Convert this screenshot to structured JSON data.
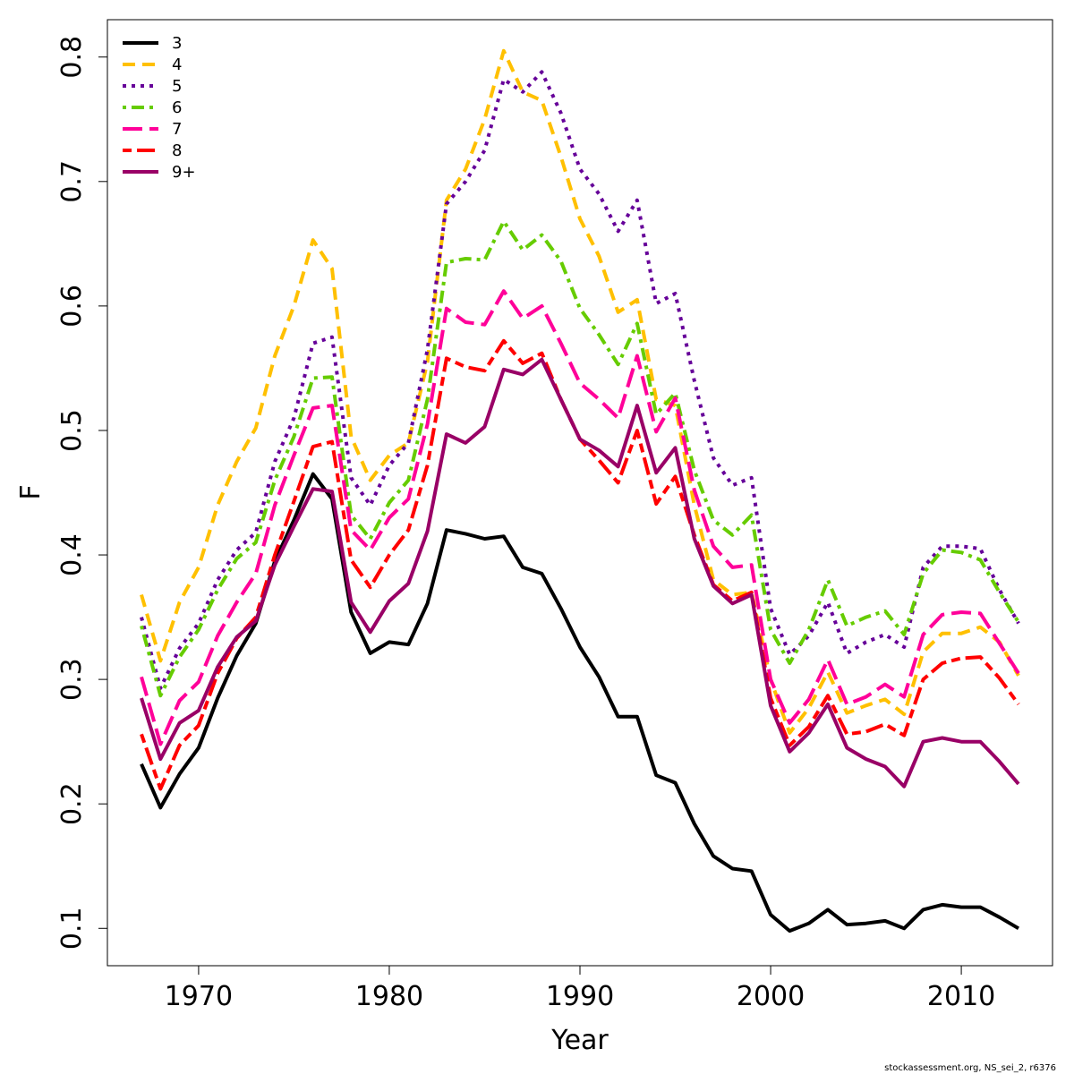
{
  "chart_data": {
    "type": "line",
    "title": "",
    "xlabel": "Year",
    "ylabel": "F",
    "xlim": [
      1967,
      2013
    ],
    "ylim": [
      0.07,
      0.83
    ],
    "xticks": [
      1970,
      1980,
      1990,
      2000,
      2010
    ],
    "yticks": [
      0.1,
      0.2,
      0.3,
      0.4,
      0.5,
      0.6,
      0.7,
      0.8
    ],
    "grid": false,
    "legend_position": "top-left",
    "footer": "stockassessment.org, NS_sei_2, r6376",
    "x": [
      1967,
      1968,
      1969,
      1970,
      1971,
      1972,
      1973,
      1974,
      1975,
      1976,
      1977,
      1978,
      1979,
      1980,
      1981,
      1982,
      1983,
      1984,
      1985,
      1986,
      1987,
      1988,
      1989,
      1990,
      1991,
      1992,
      1993,
      1994,
      1995,
      1996,
      1997,
      1998,
      1999,
      2000,
      2001,
      2002,
      2003,
      2004,
      2005,
      2006,
      2007,
      2008,
      2009,
      2010,
      2011,
      2012,
      2013
    ],
    "series": [
      {
        "name": "3",
        "color": "#000000",
        "dash": "solid",
        "values": [
          0.232,
          0.197,
          0.224,
          0.245,
          0.285,
          0.319,
          0.345,
          0.395,
          0.428,
          0.465,
          0.445,
          0.354,
          0.321,
          0.33,
          0.328,
          0.361,
          0.42,
          0.417,
          0.413,
          0.415,
          0.39,
          0.385,
          0.357,
          0.326,
          0.302,
          0.27,
          0.27,
          0.223,
          0.217,
          0.184,
          0.158,
          0.148,
          0.146,
          0.111,
          0.098,
          0.104,
          0.115,
          0.103,
          0.104,
          0.106,
          0.1,
          0.115,
          0.119,
          0.117,
          0.117,
          0.109,
          0.1
        ]
      },
      {
        "name": "4",
        "color": "#FFC000",
        "dash": "long",
        "values": [
          0.368,
          0.315,
          0.362,
          0.39,
          0.44,
          0.475,
          0.502,
          0.56,
          0.6,
          0.653,
          0.63,
          0.495,
          0.46,
          0.48,
          0.49,
          0.555,
          0.685,
          0.71,
          0.75,
          0.805,
          0.772,
          0.765,
          0.72,
          0.67,
          0.64,
          0.595,
          0.605,
          0.525,
          0.52,
          0.44,
          0.38,
          0.368,
          0.37,
          0.3,
          0.257,
          0.277,
          0.306,
          0.273,
          0.279,
          0.284,
          0.272,
          0.322,
          0.337,
          0.337,
          0.342,
          0.33,
          0.303
        ]
      },
      {
        "name": "5",
        "color": "#660099",
        "dash": "dot",
        "values": [
          0.35,
          0.293,
          0.325,
          0.345,
          0.38,
          0.404,
          0.418,
          0.475,
          0.51,
          0.57,
          0.575,
          0.462,
          0.44,
          0.472,
          0.49,
          0.565,
          0.682,
          0.7,
          0.725,
          0.782,
          0.772,
          0.788,
          0.755,
          0.71,
          0.69,
          0.66,
          0.685,
          0.602,
          0.61,
          0.54,
          0.478,
          0.456,
          0.462,
          0.357,
          0.32,
          0.335,
          0.362,
          0.321,
          0.33,
          0.336,
          0.326,
          0.39,
          0.407,
          0.407,
          0.405,
          0.372,
          0.345
        ]
      },
      {
        "name": "6",
        "color": "#66CC00",
        "dash": "dotdash",
        "values": [
          0.343,
          0.287,
          0.318,
          0.34,
          0.372,
          0.397,
          0.41,
          0.46,
          0.495,
          0.542,
          0.543,
          0.432,
          0.413,
          0.442,
          0.46,
          0.525,
          0.635,
          0.638,
          0.637,
          0.668,
          0.645,
          0.657,
          0.636,
          0.598,
          0.577,
          0.553,
          0.586,
          0.513,
          0.53,
          0.468,
          0.428,
          0.416,
          0.432,
          0.34,
          0.313,
          0.34,
          0.38,
          0.343,
          0.35,
          0.355,
          0.336,
          0.385,
          0.404,
          0.402,
          0.396,
          0.37,
          0.346
        ]
      },
      {
        "name": "7",
        "color": "#FF0099",
        "dash": "longdash",
        "values": [
          0.302,
          0.248,
          0.283,
          0.298,
          0.335,
          0.362,
          0.385,
          0.44,
          0.48,
          0.518,
          0.52,
          0.42,
          0.404,
          0.43,
          0.445,
          0.505,
          0.598,
          0.587,
          0.585,
          0.612,
          0.59,
          0.6,
          0.57,
          0.538,
          0.525,
          0.51,
          0.56,
          0.499,
          0.526,
          0.452,
          0.407,
          0.39,
          0.392,
          0.3,
          0.265,
          0.284,
          0.316,
          0.28,
          0.286,
          0.296,
          0.286,
          0.336,
          0.352,
          0.354,
          0.353,
          0.329,
          0.305
        ]
      },
      {
        "name": "8",
        "color": "#FF0000",
        "dash": "twodash",
        "values": [
          0.256,
          0.212,
          0.247,
          0.263,
          0.305,
          0.333,
          0.35,
          0.4,
          0.443,
          0.487,
          0.491,
          0.396,
          0.374,
          0.4,
          0.42,
          0.472,
          0.558,
          0.551,
          0.548,
          0.572,
          0.554,
          0.562,
          0.525,
          0.493,
          0.476,
          0.458,
          0.5,
          0.441,
          0.463,
          0.416,
          0.376,
          0.363,
          0.37,
          0.285,
          0.247,
          0.262,
          0.287,
          0.256,
          0.258,
          0.264,
          0.255,
          0.3,
          0.313,
          0.317,
          0.318,
          0.301,
          0.28
        ]
      },
      {
        "name": "9+",
        "color": "#990066",
        "dash": "solid",
        "values": [
          0.285,
          0.236,
          0.265,
          0.275,
          0.31,
          0.334,
          0.347,
          0.392,
          0.423,
          0.453,
          0.451,
          0.362,
          0.338,
          0.363,
          0.377,
          0.419,
          0.497,
          0.49,
          0.503,
          0.549,
          0.545,
          0.557,
          0.525,
          0.493,
          0.484,
          0.471,
          0.52,
          0.466,
          0.486,
          0.413,
          0.375,
          0.361,
          0.368,
          0.279,
          0.242,
          0.257,
          0.28,
          0.245,
          0.236,
          0.23,
          0.214,
          0.25,
          0.253,
          0.25,
          0.25,
          0.234,
          0.216
        ]
      }
    ]
  }
}
